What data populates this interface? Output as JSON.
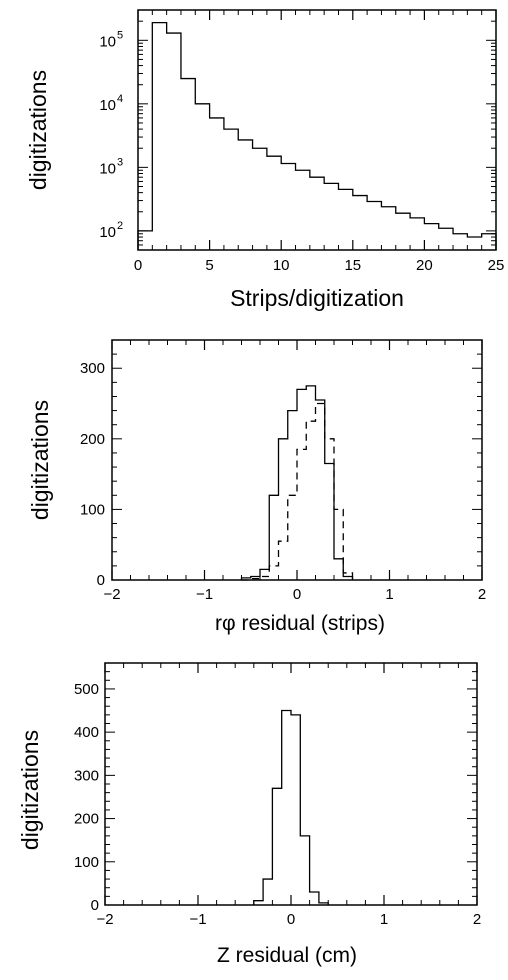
{
  "chart_data": [
    {
      "type": "histogram",
      "xlabel": "Strips/digitization",
      "ylabel": "digitizations",
      "yscale": "log",
      "xlim": [
        0,
        25
      ],
      "ylim": [
        50,
        300000
      ],
      "xticks": [
        "0",
        "5",
        "10",
        "15",
        "20",
        "25"
      ],
      "yticks": [
        "10",
        "10",
        "10",
        "10"
      ],
      "ytick_exponents": [
        "2",
        "3",
        "4",
        "5"
      ],
      "bin_edges": [
        0,
        1,
        2,
        3,
        4,
        5,
        6,
        7,
        8,
        9,
        10,
        11,
        12,
        13,
        14,
        15,
        16,
        17,
        18,
        19,
        20,
        21,
        22,
        23,
        24,
        25
      ],
      "series": [
        {
          "style": "solid",
          "values": [
            100,
            190000,
            130000,
            25000,
            10000,
            6000,
            4000,
            2700,
            2000,
            1500,
            1150,
            900,
            700,
            560,
            450,
            360,
            290,
            240,
            190,
            160,
            130,
            110,
            90,
            80,
            90
          ]
        }
      ]
    },
    {
      "type": "histogram",
      "xlabel": "rφ  residual (strips)",
      "ylabel": "digitizations",
      "xlim": [
        -2,
        2
      ],
      "ylim": [
        0,
        340
      ],
      "xticks": [
        "−2",
        "−1",
        "0",
        "1",
        "2"
      ],
      "yticks": [
        "0",
        "100",
        "200",
        "300"
      ],
      "bin_edges": [
        -0.6,
        -0.5,
        -0.4,
        -0.3,
        -0.2,
        -0.1,
        0.0,
        0.1,
        0.2,
        0.3,
        0.4,
        0.5,
        0.6
      ],
      "series": [
        {
          "style": "solid",
          "values": [
            3,
            5,
            15,
            120,
            200,
            240,
            270,
            275,
            255,
            165,
            30,
            5
          ]
        },
        {
          "style": "dashed",
          "values": [
            0,
            2,
            5,
            20,
            55,
            120,
            185,
            225,
            250,
            200,
            100,
            10
          ]
        }
      ]
    },
    {
      "type": "histogram",
      "xlabel": "Z residual (cm)",
      "ylabel": "digitizations",
      "xlim": [
        -2,
        2
      ],
      "ylim": [
        0,
        560
      ],
      "xticks": [
        "−2",
        "−1",
        "0",
        "1",
        "2"
      ],
      "yticks": [
        "0",
        "100",
        "200",
        "300",
        "400",
        "500"
      ],
      "bin_edges": [
        -0.4,
        -0.3,
        -0.2,
        -0.1,
        0.0,
        0.1,
        0.2,
        0.3,
        0.4
      ],
      "series": [
        {
          "style": "solid",
          "values": [
            10,
            60,
            270,
            450,
            440,
            160,
            30,
            5
          ]
        }
      ]
    }
  ]
}
